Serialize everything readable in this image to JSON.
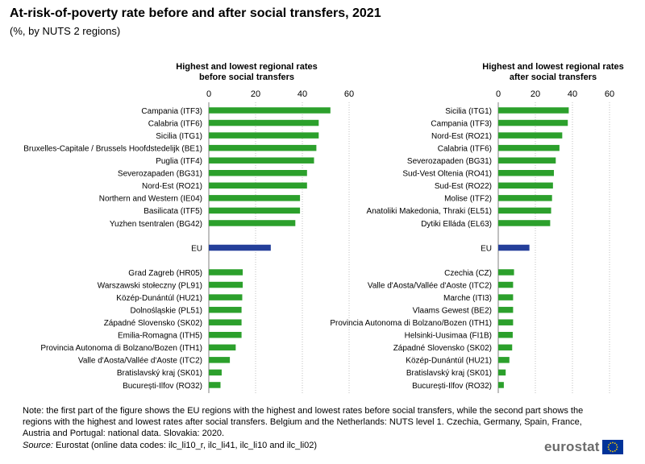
{
  "title": "At-risk-of-poverty rate before and after social transfers, 2021",
  "subtitle": "(%, by NUTS 2 regions)",
  "footnote": "Note: the first part of the figure shows the EU regions with the highest and lowest rates before social transfers, while the second part shows the regions with the highest and lowest rates after social transfers. Belgium and the Netherlands: NUTS level 1. Czechia, Germany, Spain, France, Austria and Portugal: national data. Slovakia: 2020.",
  "source_label": "Source:",
  "source_text": "Eurostat (online data codes: ilc_li10_r, ilc_li41, ilc_li10 and ilc_li02)",
  "logo_text": "eurostat",
  "colors": {
    "regions": "#2ca02c",
    "eu": "#243f9a",
    "grid": "#bfbfbf"
  },
  "chart_data": [
    {
      "type": "bar",
      "orientation": "horizontal",
      "title": "Highest and lowest regional rates before social transfers",
      "title_lines": [
        "Highest and lowest regional rates",
        "before social transfers"
      ],
      "xlim": [
        0,
        60
      ],
      "ticks": [
        0,
        20,
        40,
        60
      ],
      "grid": true,
      "highest": {
        "categories": [
          "Campania (ITF3)",
          "Calabria (ITF6)",
          "Sicilia (ITG1)",
          "Bruxelles-Capitale / Brussels Hoofdstedelijk (BE1)",
          "Puglia (ITF4)",
          "Severozapaden (BG31)",
          "Nord-Est (RO21)",
          "Northern and Western (IE04)",
          "Basilicata (ITF5)",
          "Yuzhen tsentralen (BG42)"
        ],
        "values": [
          52,
          47,
          47,
          46,
          45,
          42,
          42,
          39,
          39,
          37
        ]
      },
      "eu": {
        "label": "EU",
        "value": 26.5
      },
      "lowest": {
        "categories": [
          "Grad Zagreb (HR05)",
          "Warszawski stołeczny (PL91)",
          "Közép-Dunántúl (HU21)",
          "Dolnośląskie (PL51)",
          "Západné Slovensko (SK02)",
          "Emilia-Romagna (ITH5)",
          "Provincia Autonoma di Bolzano/Bozen (ITH1)",
          "Valle d'Aosta/Vallée d'Aoste (ITC2)",
          "Bratislavský kraj (SK01)",
          "București-Ilfov (RO32)"
        ],
        "values": [
          14.5,
          14.5,
          14.3,
          14,
          14,
          14,
          11.5,
          9,
          5.5,
          5
        ]
      }
    },
    {
      "type": "bar",
      "orientation": "horizontal",
      "title": "Highest and lowest regional rates after social transfers",
      "title_lines": [
        "Highest and lowest regional rates",
        "after social transfers"
      ],
      "xlim": [
        0,
        60
      ],
      "ticks": [
        0,
        20,
        40,
        60
      ],
      "grid": true,
      "highest": {
        "categories": [
          "Sicilia (ITG1)",
          "Campania (ITF3)",
          "Nord-Est (RO21)",
          "Calabria (ITF6)",
          "Severozapaden (BG31)",
          "Sud-Vest Oltenia (RO41)",
          "Sud-Est (RO22)",
          "Molise (ITF2)",
          "Anatoliki Makedonia, Thraki (EL51)",
          "Dytiki Elláda (EL63)"
        ],
        "values": [
          38,
          37.5,
          34.5,
          33,
          31,
          30,
          29.5,
          29,
          28.5,
          28
        ]
      },
      "eu": {
        "label": "EU",
        "value": 16.8
      },
      "lowest": {
        "categories": [
          "Czechia (CZ)",
          "Valle d'Aosta/Vallée d'Aoste (ITC2)",
          "Marche (ITI3)",
          "Vlaams Gewest (BE2)",
          "Provincia Autonoma di Bolzano/Bozen (ITH1)",
          "Helsinki-Uusimaa (FI1B)",
          "Západné Slovensko (SK02)",
          "Közép-Dunántúl (HU21)",
          "Bratislavský kraj (SK01)",
          "București-Ilfov (RO32)"
        ],
        "values": [
          8.5,
          8,
          8,
          8,
          8,
          7.8,
          7.5,
          6,
          4,
          3
        ]
      }
    }
  ]
}
